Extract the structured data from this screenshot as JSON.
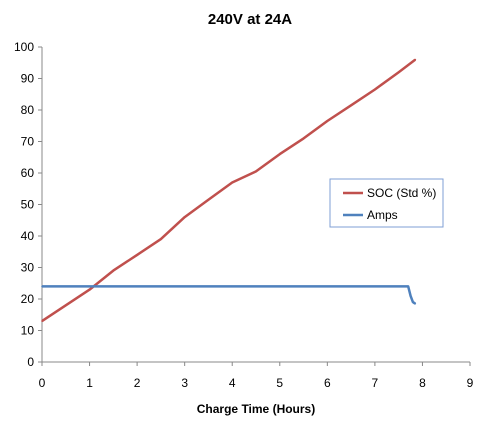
{
  "chart_data": {
    "type": "line",
    "title": "240V at 24A",
    "xlabel": "Charge Time (Hours)",
    "ylabel": "",
    "xlim": [
      0,
      9
    ],
    "ylim": [
      0,
      100
    ],
    "xticks": [
      "0",
      "1",
      "2",
      "3",
      "4",
      "5",
      "6",
      "7",
      "8",
      "9"
    ],
    "yticks": [
      "0",
      "10",
      "20",
      "30",
      "40",
      "50",
      "60",
      "70",
      "80",
      "90",
      "100"
    ],
    "grid": false,
    "legend_position": "right",
    "series": [
      {
        "name": "SOC (Std %)",
        "color": "#c0504d",
        "x": [
          0,
          0.5,
          1,
          1.5,
          2,
          2.5,
          3,
          3.5,
          4,
          4.5,
          5,
          5.5,
          6,
          6.5,
          7,
          7.5,
          7.85
        ],
        "y": [
          13,
          18,
          23,
          29,
          34,
          39,
          46,
          51.5,
          57,
          60.5,
          66,
          71,
          76.5,
          81.5,
          86.5,
          92,
          96
        ]
      },
      {
        "name": "Amps",
        "color": "#4f81bd",
        "x": [
          0,
          1,
          2,
          3,
          4,
          5,
          6,
          7,
          7.7,
          7.75,
          7.8,
          7.85
        ],
        "y": [
          24,
          24,
          24,
          24,
          24,
          24,
          24,
          24,
          24,
          21,
          19,
          18.5
        ]
      }
    ]
  }
}
